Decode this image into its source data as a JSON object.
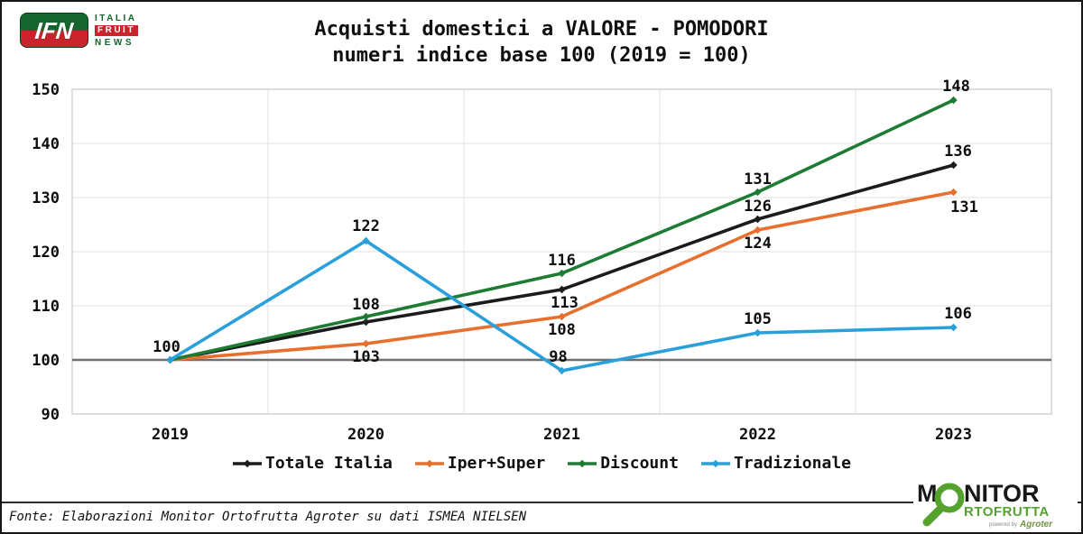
{
  "header": {
    "ifn_logo": {
      "initials": "IFN",
      "word1": "ITALIA",
      "word2": "FRUIT",
      "word3": "NEWS"
    }
  },
  "chart_data": {
    "type": "line",
    "title": "Acquisti domestici a VALORE - POMODORI",
    "subtitle": "numeri indice base 100 (2019 = 100)",
    "categories": [
      "2019",
      "2020",
      "2021",
      "2022",
      "2023"
    ],
    "series": [
      {
        "name": "Totale Italia",
        "color": "#1b1b1b",
        "values": [
          100,
          107,
          113,
          126,
          136
        ],
        "point_labels": [
          {
            "t": "100",
            "dx": -4,
            "dy": -9
          },
          null,
          {
            "t": "113",
            "dx": 3,
            "dy": 20
          },
          {
            "t": "126",
            "dx": 0,
            "dy": -9
          },
          {
            "t": "136",
            "dx": 5,
            "dy": -10
          }
        ]
      },
      {
        "name": "Iper+Super",
        "color": "#e8702e",
        "values": [
          100,
          103,
          108,
          124,
          131
        ],
        "point_labels": [
          null,
          {
            "t": "103",
            "dx": 0,
            "dy": 20
          },
          {
            "t": "108",
            "dx": 0,
            "dy": 20
          },
          {
            "t": "124",
            "dx": 0,
            "dy": 20
          },
          {
            "t": "131",
            "dx": 12,
            "dy": 22
          }
        ]
      },
      {
        "name": "Discount",
        "color": "#1e7b33",
        "values": [
          100,
          108,
          116,
          131,
          148
        ],
        "point_labels": [
          null,
          {
            "t": "108",
            "dx": 0,
            "dy": -8
          },
          {
            "t": "116",
            "dx": 0,
            "dy": -9
          },
          {
            "t": "131",
            "dx": 0,
            "dy": -9
          },
          {
            "t": "148",
            "dx": 3,
            "dy": -10
          }
        ]
      },
      {
        "name": "Tradizionale",
        "color": "#2aa0db",
        "values": [
          100,
          122,
          98,
          105,
          106
        ],
        "point_labels": [
          null,
          {
            "t": "122",
            "dx": 0,
            "dy": -11
          },
          {
            "t": "98",
            "dx": -4,
            "dy": -10
          },
          {
            "t": "105",
            "dx": 0,
            "dy": -10
          },
          {
            "t": "106",
            "dx": 5,
            "dy": -10
          }
        ]
      }
    ],
    "ylim": [
      90,
      150
    ],
    "yticks": [
      90,
      100,
      110,
      120,
      130,
      140,
      150
    ],
    "baseline_value": 100,
    "grid": true,
    "legend_position": "bottom",
    "xlabel": "",
    "ylabel": ""
  },
  "footer": {
    "source": "Fonte: Elaborazioni Monitor Ortofrutta Agroter su dati ISMEA NIELSEN"
  },
  "monitor_logo": {
    "m": "M",
    "nitor": "NITOR",
    "line2": "RTOFRUTTA",
    "powered_by": "powered by",
    "agroter": "Agroter"
  },
  "colors": {
    "baseline": "#6e6e6e",
    "gridline": "#e6e6e6",
    "plot_border": "#cfcfcf",
    "text": "#0d0d0d",
    "ifn_green": "#14652e",
    "ifn_red": "#c9242b",
    "monitor_green": "#55a32f"
  }
}
